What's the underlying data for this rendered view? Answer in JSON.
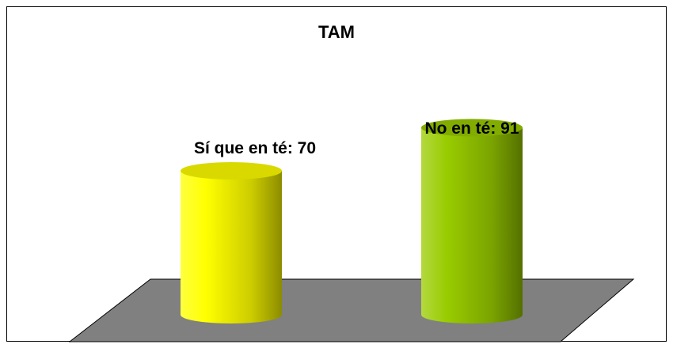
{
  "chart_data": {
    "type": "bar",
    "title": "TAM",
    "categories": [
      "Sí que en té",
      "No en té"
    ],
    "values": [
      70,
      91
    ],
    "value_labels": [
      "Sí que en té: 70",
      "No en té: 91"
    ],
    "colors": [
      "#ffff00",
      "#99cc00"
    ]
  }
}
